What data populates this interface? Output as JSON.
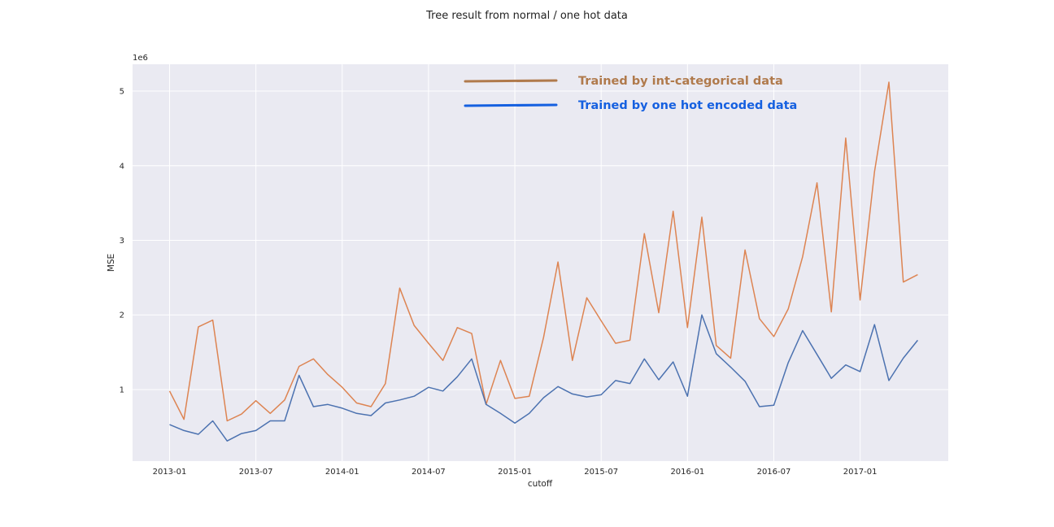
{
  "chart_data": {
    "type": "line",
    "title": "Tree result from normal / one hot data",
    "xlabel": "cutoff",
    "ylabel": "MSE",
    "y_multiplier": "1e6",
    "ylim": [
      0.04,
      5.36
    ],
    "yticks": [
      1,
      2,
      3,
      4,
      5
    ],
    "xticks": [
      "2013-01",
      "2013-07",
      "2014-01",
      "2014-07",
      "2015-01",
      "2015-07",
      "2016-01",
      "2016-07",
      "2017-01"
    ],
    "grid": true,
    "legend_position": "top-center",
    "x": [
      "2013-01",
      "2013-02",
      "2013-03",
      "2013-04",
      "2013-05",
      "2013-06",
      "2013-07",
      "2013-08",
      "2013-09",
      "2013-10",
      "2013-11",
      "2013-12",
      "2014-01",
      "2014-02",
      "2014-03",
      "2014-04",
      "2014-05",
      "2014-06",
      "2014-07",
      "2014-08",
      "2014-09",
      "2014-10",
      "2014-11",
      "2014-12",
      "2015-01",
      "2015-02",
      "2015-03",
      "2015-04",
      "2015-05",
      "2015-06",
      "2015-07",
      "2015-08",
      "2015-09",
      "2015-10",
      "2015-11",
      "2015-12",
      "2016-01",
      "2016-02",
      "2016-03",
      "2016-04",
      "2016-05",
      "2016-06",
      "2016-07",
      "2016-08",
      "2016-09",
      "2016-10",
      "2016-11",
      "2016-12",
      "2017-01",
      "2017-02",
      "2017-03",
      "2017-04",
      "2017-05",
      "2017-06",
      "2017-07"
    ],
    "series": [
      {
        "name": "Trained by int-categorical data",
        "color": "#dd8452",
        "values": [
          0.98,
          0.6,
          1.84,
          1.93,
          0.58,
          0.67,
          0.85,
          0.68,
          0.86,
          1.31,
          1.41,
          1.2,
          1.03,
          0.82,
          0.77,
          1.08,
          2.36,
          1.86,
          1.62,
          1.39,
          1.83,
          1.75,
          0.8,
          1.39,
          0.88,
          0.91,
          1.7,
          2.71,
          1.39,
          2.23,
          1.92,
          1.62,
          1.66,
          3.09,
          2.03,
          3.39,
          1.83,
          3.31,
          1.59,
          1.42,
          2.87,
          1.95,
          1.71,
          2.08,
          2.78,
          3.77,
          2.04,
          4.37,
          2.2,
          3.92,
          5.12,
          2.44,
          2.54,
          null,
          null
        ]
      },
      {
        "name": "Trained by one hot encoded data",
        "color": "#4c72b0",
        "values": [
          0.53,
          0.45,
          0.4,
          0.58,
          0.31,
          0.41,
          0.45,
          0.58,
          0.58,
          1.19,
          0.77,
          0.8,
          0.75,
          0.68,
          0.65,
          0.82,
          0.86,
          0.91,
          1.03,
          0.98,
          1.17,
          1.41,
          0.8,
          0.68,
          0.55,
          0.68,
          0.89,
          1.04,
          0.94,
          0.9,
          0.93,
          1.12,
          1.08,
          1.41,
          1.13,
          1.37,
          0.91,
          2.0,
          1.48,
          1.3,
          1.11,
          0.77,
          0.79,
          1.36,
          1.79,
          1.47,
          1.15,
          1.33,
          1.24,
          1.87,
          1.12,
          1.42,
          1.66,
          null,
          null
        ]
      }
    ]
  },
  "legend": [
    {
      "label": "Trained by int-categorical data",
      "color": "#b07a4c"
    },
    {
      "label": "Trained by one hot encoded data",
      "color": "#1560e0"
    }
  ]
}
